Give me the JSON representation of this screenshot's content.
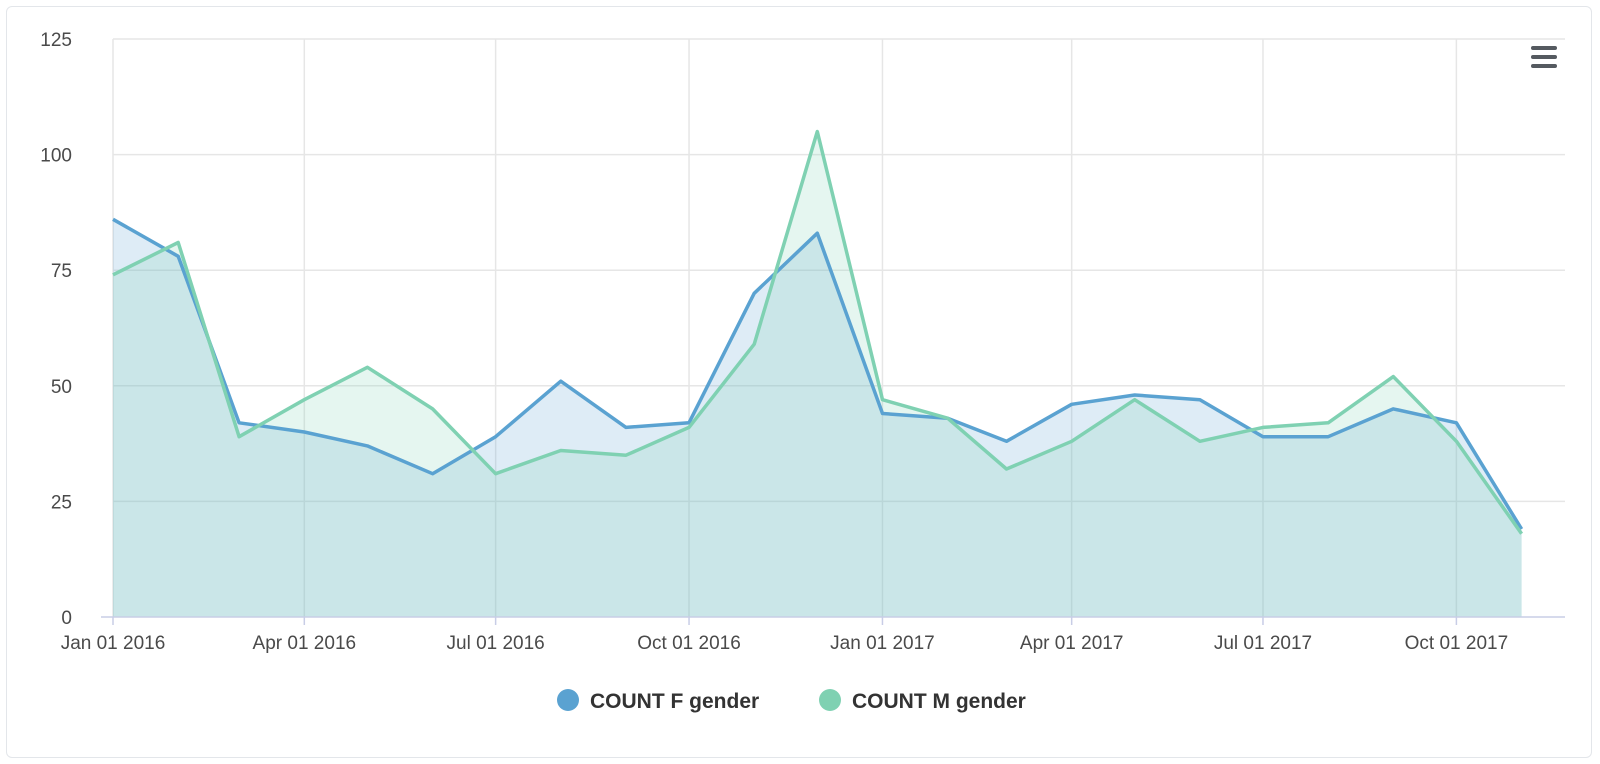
{
  "chart_data": {
    "type": "area",
    "x": [
      "2016-01-01",
      "2016-02-01",
      "2016-03-01",
      "2016-04-01",
      "2016-05-01",
      "2016-06-01",
      "2016-07-01",
      "2016-08-01",
      "2016-09-01",
      "2016-10-01",
      "2016-11-01",
      "2016-12-01",
      "2017-01-01",
      "2017-02-01",
      "2017-03-01",
      "2017-04-01",
      "2017-05-01",
      "2017-06-01",
      "2017-07-01",
      "2017-08-01",
      "2017-09-01",
      "2017-10-01",
      "2017-11-01"
    ],
    "series": [
      {
        "name": "COUNT F gender",
        "color": "#5aa2d1",
        "values": [
          86,
          78,
          42,
          40,
          37,
          31,
          39,
          51,
          41,
          42,
          70,
          83,
          44,
          43,
          38,
          46,
          48,
          47,
          39,
          39,
          45,
          42,
          19
        ]
      },
      {
        "name": "COUNT M gender",
        "color": "#7fd1b2",
        "values": [
          74,
          81,
          39,
          47,
          54,
          45,
          31,
          36,
          35,
          41,
          59,
          105,
          47,
          43,
          32,
          38,
          47,
          38,
          41,
          42,
          52,
          38,
          18
        ]
      }
    ],
    "x_ticks": [
      {
        "date": "2016-01-01",
        "label": "Jan 01 2016"
      },
      {
        "date": "2016-04-01",
        "label": "Apr 01 2016"
      },
      {
        "date": "2016-07-01",
        "label": "Jul 01 2016"
      },
      {
        "date": "2016-10-01",
        "label": "Oct 01 2016"
      },
      {
        "date": "2017-01-01",
        "label": "Jan 01 2017"
      },
      {
        "date": "2017-04-01",
        "label": "Apr 01 2017"
      },
      {
        "date": "2017-07-01",
        "label": "Jul 01 2017"
      },
      {
        "date": "2017-10-01",
        "label": "Oct 01 2017"
      }
    ],
    "y_ticks": [
      "0",
      "25",
      "50",
      "75",
      "100",
      "125"
    ],
    "ylim": [
      0,
      125
    ],
    "grid": true,
    "legend_position": "bottom-center",
    "title": "",
    "xlabel": "",
    "ylabel": ""
  },
  "menu": {
    "icon": "hamburger-menu-icon"
  }
}
